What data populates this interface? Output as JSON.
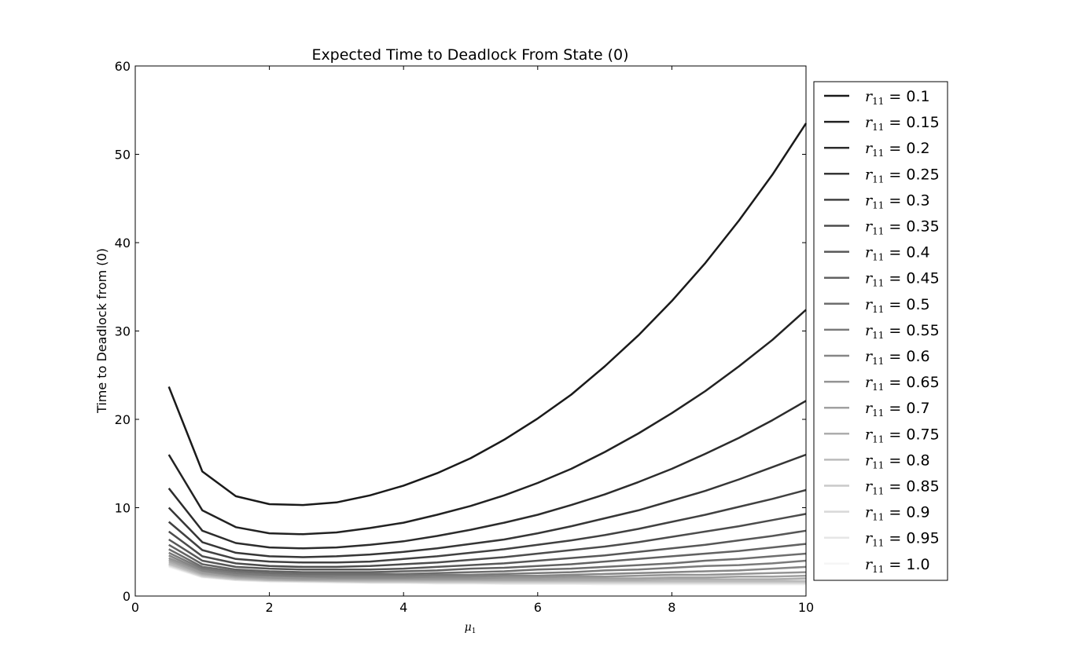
{
  "chart_data": {
    "type": "line",
    "title": "Expected Time to Deadlock From State (0)",
    "ylabel": "Time to Deadlock from (0)",
    "xlabel": "μ₁",
    "xlabel_parts": {
      "symbol": "μ",
      "subscript": "1"
    },
    "xlim": [
      0,
      10
    ],
    "ylim": [
      0,
      60
    ],
    "xticks": [
      "0",
      "2",
      "4",
      "6",
      "8",
      "10"
    ],
    "yticks": [
      "0",
      "10",
      "20",
      "30",
      "40",
      "50",
      "60"
    ],
    "grid": false,
    "legend_position": "right-outside",
    "x": [
      0.5,
      1.0,
      1.5,
      2.0,
      2.5,
      3.0,
      3.5,
      4.0,
      4.5,
      5.0,
      5.5,
      6.0,
      6.5,
      7.0,
      7.5,
      8.0,
      8.5,
      9.0,
      9.5,
      10.0
    ],
    "series": [
      {
        "name": "r11 = 0.1",
        "legend_value": "0.1",
        "color": "#1a1a1a",
        "values": [
          23.7,
          14.1,
          11.3,
          10.4,
          10.3,
          10.6,
          11.4,
          12.5,
          13.9,
          15.6,
          17.7,
          20.1,
          22.8,
          26.0,
          29.5,
          33.4,
          37.7,
          42.5,
          47.7,
          53.5
        ]
      },
      {
        "name": "r11 = 0.15",
        "legend_value": "0.15",
        "color": "#222222",
        "values": [
          16.0,
          9.7,
          7.8,
          7.1,
          7.0,
          7.2,
          7.7,
          8.3,
          9.2,
          10.2,
          11.4,
          12.8,
          14.4,
          16.3,
          18.4,
          20.7,
          23.2,
          26.0,
          29.0,
          32.4
        ]
      },
      {
        "name": "r11 = 0.2",
        "legend_value": "0.2",
        "color": "#2c2c2c",
        "values": [
          12.2,
          7.4,
          6.0,
          5.5,
          5.4,
          5.5,
          5.8,
          6.2,
          6.8,
          7.5,
          8.3,
          9.2,
          10.3,
          11.5,
          12.9,
          14.4,
          16.1,
          17.9,
          19.9,
          22.1
        ]
      },
      {
        "name": "r11 = 0.25",
        "legend_value": "0.25",
        "color": "#363636",
        "values": [
          10.0,
          6.1,
          4.9,
          4.5,
          4.4,
          4.5,
          4.7,
          5.0,
          5.4,
          5.9,
          6.4,
          7.1,
          7.9,
          8.8,
          9.7,
          10.8,
          11.9,
          13.2,
          14.6,
          16.0
        ]
      },
      {
        "name": "r11 = 0.3",
        "legend_value": "0.3",
        "color": "#414141",
        "values": [
          8.4,
          5.2,
          4.2,
          3.9,
          3.8,
          3.8,
          3.9,
          4.2,
          4.5,
          4.9,
          5.3,
          5.8,
          6.3,
          6.9,
          7.6,
          8.4,
          9.2,
          10.1,
          11.0,
          12.0
        ]
      },
      {
        "name": "r11 = 0.35",
        "legend_value": "0.35",
        "color": "#4c4c4c",
        "values": [
          7.3,
          4.5,
          3.7,
          3.4,
          3.3,
          3.3,
          3.4,
          3.6,
          3.8,
          4.1,
          4.4,
          4.8,
          5.2,
          5.6,
          6.1,
          6.7,
          7.3,
          7.9,
          8.6,
          9.3
        ]
      },
      {
        "name": "r11 = 0.4",
        "legend_value": "0.4",
        "color": "#575757",
        "values": [
          6.4,
          4.0,
          3.3,
          3.1,
          3.0,
          3.0,
          3.0,
          3.1,
          3.3,
          3.5,
          3.7,
          4.0,
          4.3,
          4.6,
          5.0,
          5.4,
          5.8,
          6.3,
          6.8,
          7.4
        ]
      },
      {
        "name": "r11 = 0.45",
        "legend_value": "0.45",
        "color": "#626262",
        "values": [
          5.8,
          3.6,
          3.0,
          2.8,
          2.7,
          2.7,
          2.7,
          2.8,
          2.9,
          3.1,
          3.2,
          3.4,
          3.6,
          3.9,
          4.2,
          4.5,
          4.8,
          5.1,
          5.5,
          5.9
        ]
      },
      {
        "name": "r11 = 0.5",
        "legend_value": "0.5",
        "color": "#6e6e6e",
        "values": [
          5.3,
          3.3,
          2.8,
          2.6,
          2.5,
          2.5,
          2.5,
          2.5,
          2.6,
          2.7,
          2.8,
          3.0,
          3.1,
          3.3,
          3.5,
          3.7,
          4.0,
          4.2,
          4.5,
          4.8
        ]
      },
      {
        "name": "r11 = 0.55",
        "legend_value": "0.55",
        "color": "#7a7a7a",
        "values": [
          4.9,
          3.1,
          2.6,
          2.4,
          2.3,
          2.3,
          2.3,
          2.3,
          2.4,
          2.4,
          2.5,
          2.6,
          2.7,
          2.9,
          3.0,
          3.2,
          3.4,
          3.5,
          3.7,
          4.0
        ]
      },
      {
        "name": "r11 = 0.6",
        "legend_value": "0.6",
        "color": "#868686",
        "values": [
          4.6,
          2.9,
          2.4,
          2.3,
          2.2,
          2.1,
          2.1,
          2.1,
          2.2,
          2.2,
          2.3,
          2.3,
          2.4,
          2.5,
          2.6,
          2.7,
          2.8,
          2.9,
          3.1,
          3.3
        ]
      },
      {
        "name": "r11 = 0.65",
        "legend_value": "0.65",
        "color": "#939393",
        "values": [
          4.3,
          2.8,
          2.3,
          2.1,
          2.0,
          2.0,
          2.0,
          2.0,
          2.0,
          2.0,
          2.1,
          2.1,
          2.2,
          2.2,
          2.3,
          2.4,
          2.4,
          2.5,
          2.6,
          2.7
        ]
      },
      {
        "name": "r11 = 0.7",
        "legend_value": "0.7",
        "color": "#a0a0a0",
        "values": [
          4.1,
          2.6,
          2.2,
          2.0,
          1.9,
          1.9,
          1.9,
          1.9,
          1.9,
          1.9,
          1.9,
          1.9,
          2.0,
          2.0,
          2.0,
          2.1,
          2.1,
          2.2,
          2.2,
          2.3
        ]
      },
      {
        "name": "r11 = 0.75",
        "legend_value": "0.75",
        "color": "#adadad",
        "values": [
          3.9,
          2.5,
          2.1,
          1.9,
          1.8,
          1.8,
          1.8,
          1.8,
          1.8,
          1.8,
          1.8,
          1.8,
          1.8,
          1.8,
          1.8,
          1.9,
          1.9,
          1.9,
          1.9,
          2.0
        ]
      },
      {
        "name": "r11 = 0.8",
        "legend_value": "0.8",
        "color": "#bbbbbb",
        "values": [
          3.7,
          2.4,
          2.0,
          1.8,
          1.8,
          1.7,
          1.7,
          1.7,
          1.7,
          1.7,
          1.7,
          1.7,
          1.7,
          1.7,
          1.7,
          1.7,
          1.7,
          1.7,
          1.7,
          1.7
        ]
      },
      {
        "name": "r11 = 0.85",
        "legend_value": "0.85",
        "color": "#c9c9c9",
        "values": [
          3.6,
          2.3,
          1.9,
          1.8,
          1.7,
          1.7,
          1.6,
          1.6,
          1.6,
          1.6,
          1.6,
          1.6,
          1.6,
          1.6,
          1.6,
          1.6,
          1.6,
          1.6,
          1.6,
          1.6
        ]
      },
      {
        "name": "r11 = 0.9",
        "legend_value": "0.9",
        "color": "#d8d8d8",
        "values": [
          3.5,
          2.2,
          1.9,
          1.7,
          1.7,
          1.6,
          1.6,
          1.6,
          1.5,
          1.5,
          1.5,
          1.5,
          1.5,
          1.5,
          1.5,
          1.5,
          1.5,
          1.5,
          1.5,
          1.5
        ]
      },
      {
        "name": "r11 = 0.95",
        "legend_value": "0.95",
        "color": "#e6e6e6",
        "values": [
          3.4,
          2.2,
          1.8,
          1.7,
          1.6,
          1.6,
          1.5,
          1.5,
          1.5,
          1.5,
          1.4,
          1.4,
          1.4,
          1.4,
          1.4,
          1.4,
          1.4,
          1.4,
          1.4,
          1.4
        ]
      },
      {
        "name": "r11 = 1.0",
        "legend_value": "1.0",
        "color": "#f5f5f5",
        "values": [
          3.3,
          2.1,
          1.8,
          1.6,
          1.6,
          1.5,
          1.5,
          1.5,
          1.4,
          1.4,
          1.4,
          1.4,
          1.4,
          1.3,
          1.3,
          1.3,
          1.3,
          1.3,
          1.3,
          1.3
        ]
      }
    ],
    "legend_symbol": {
      "letter": "r",
      "subscript": "11",
      "eq": " = "
    }
  }
}
